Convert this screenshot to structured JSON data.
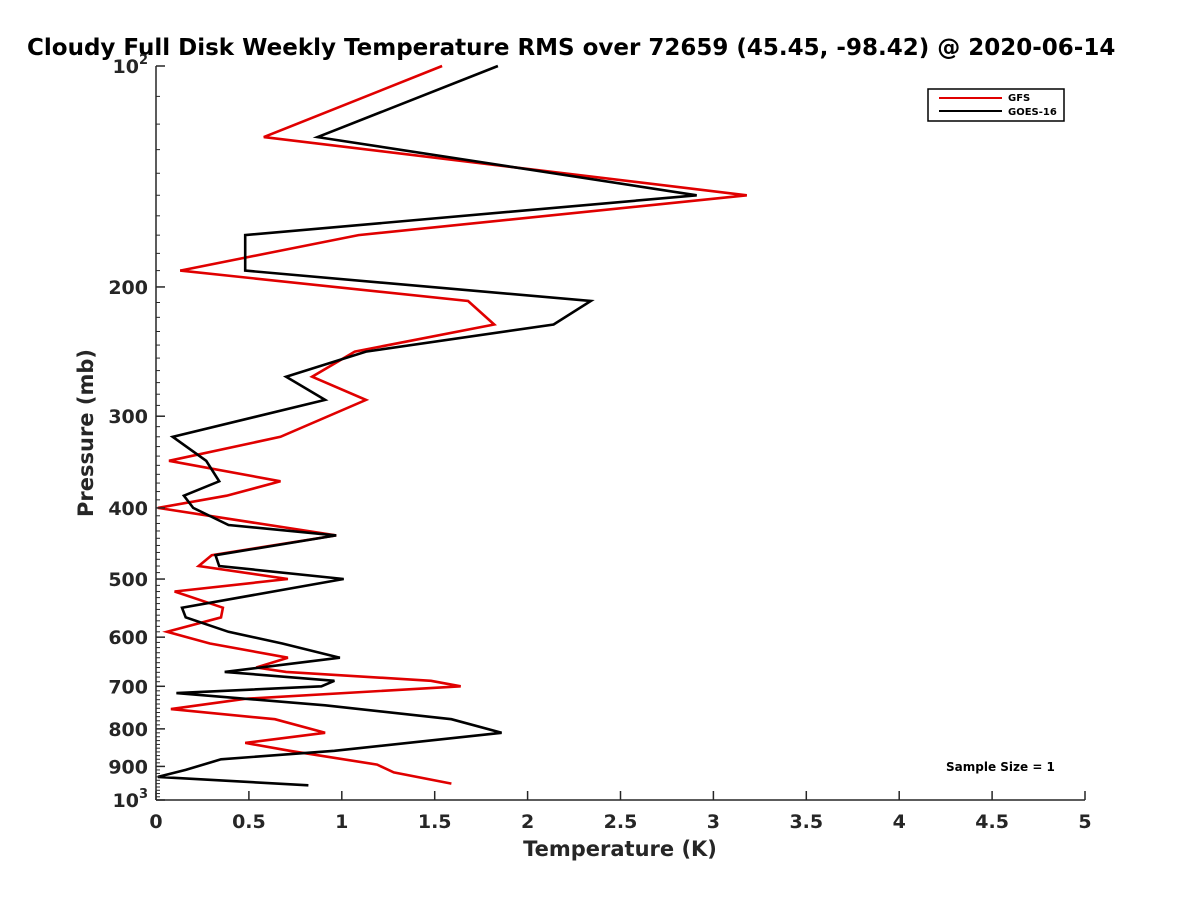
{
  "chart_data": {
    "type": "line",
    "title": "Cloudy Full Disk Weekly Temperature RMS over 72659 (45.45, -98.42) @ 2020-06-14",
    "xlabel": "Temperature (K)",
    "ylabel": "Pressure (mb)",
    "xlim": [
      0,
      5
    ],
    "ylim": [
      100,
      1000
    ],
    "y_scale": "log",
    "y_reversed": true,
    "grid": false,
    "legend_position": "top-right",
    "x_ticks": [
      "0",
      "0.5",
      "1",
      "1.5",
      "2",
      "2.5",
      "3",
      "3.5",
      "4",
      "4.5",
      "5"
    ],
    "y_ticks": [
      {
        "value": 100,
        "base": "10",
        "exp": "2"
      },
      {
        "value": 200,
        "label": "200"
      },
      {
        "value": 300,
        "label": "300"
      },
      {
        "value": 400,
        "label": "400"
      },
      {
        "value": 500,
        "label": "500"
      },
      {
        "value": 600,
        "label": "600"
      },
      {
        "value": 700,
        "label": "700"
      },
      {
        "value": 800,
        "label": "800"
      },
      {
        "value": 900,
        "label": "900"
      },
      {
        "value": 1000,
        "base": "10",
        "exp": "3"
      }
    ],
    "series": [
      {
        "name": "GFS",
        "color": "#e00000",
        "points": [
          [
            1.54,
            100
          ],
          [
            0.58,
            125
          ],
          [
            3.18,
            150
          ],
          [
            1.09,
            170
          ],
          [
            0.13,
            190
          ],
          [
            1.68,
            209
          ],
          [
            1.82,
            225
          ],
          [
            1.07,
            245
          ],
          [
            0.84,
            265
          ],
          [
            1.13,
            285
          ],
          [
            0.67,
            320
          ],
          [
            0.07,
            345
          ],
          [
            0.67,
            368
          ],
          [
            0.38,
            385
          ],
          [
            0.01,
            400
          ],
          [
            0.97,
            436
          ],
          [
            0.3,
            464
          ],
          [
            0.23,
            480
          ],
          [
            0.71,
            500
          ],
          [
            0.1,
            520
          ],
          [
            0.36,
            547
          ],
          [
            0.35,
            564
          ],
          [
            0.06,
            590
          ],
          [
            0.29,
            612
          ],
          [
            0.71,
            640
          ],
          [
            0.54,
            660
          ],
          [
            0.7,
            669
          ],
          [
            1.48,
            688
          ],
          [
            1.64,
            700
          ],
          [
            0.48,
            728
          ],
          [
            0.08,
            752
          ],
          [
            0.64,
            776
          ],
          [
            0.91,
            810
          ],
          [
            0.48,
            836
          ],
          [
            0.72,
            857
          ],
          [
            1.19,
            895
          ],
          [
            1.28,
            917
          ],
          [
            1.59,
            950
          ]
        ]
      },
      {
        "name": "GOES-16",
        "color": "#000000",
        "points": [
          [
            1.84,
            100
          ],
          [
            0.87,
            125
          ],
          [
            2.91,
            150
          ],
          [
            0.48,
            170
          ],
          [
            0.48,
            190
          ],
          [
            2.34,
            209
          ],
          [
            2.14,
            225
          ],
          [
            1.13,
            245
          ],
          [
            0.7,
            265
          ],
          [
            0.91,
            285
          ],
          [
            0.09,
            320
          ],
          [
            0.27,
            345
          ],
          [
            0.34,
            368
          ],
          [
            0.15,
            385
          ],
          [
            0.2,
            400
          ],
          [
            0.39,
            422
          ],
          [
            0.97,
            436
          ],
          [
            0.32,
            464
          ],
          [
            0.34,
            480
          ],
          [
            1.01,
            500
          ],
          [
            0.14,
            547
          ],
          [
            0.16,
            564
          ],
          [
            0.39,
            590
          ],
          [
            0.68,
            612
          ],
          [
            0.99,
            640
          ],
          [
            0.37,
            669
          ],
          [
            0.96,
            688
          ],
          [
            0.89,
            700
          ],
          [
            0.11,
            715
          ],
          [
            0.91,
            743
          ],
          [
            1.59,
            776
          ],
          [
            1.86,
            810
          ],
          [
            0.96,
            857
          ],
          [
            0.35,
            880
          ],
          [
            0.16,
            910
          ],
          [
            0.01,
            930
          ],
          [
            0.82,
            955
          ]
        ]
      }
    ],
    "annotations": [
      {
        "text": "Sample Size = 1",
        "position": "bottom-right"
      }
    ]
  }
}
